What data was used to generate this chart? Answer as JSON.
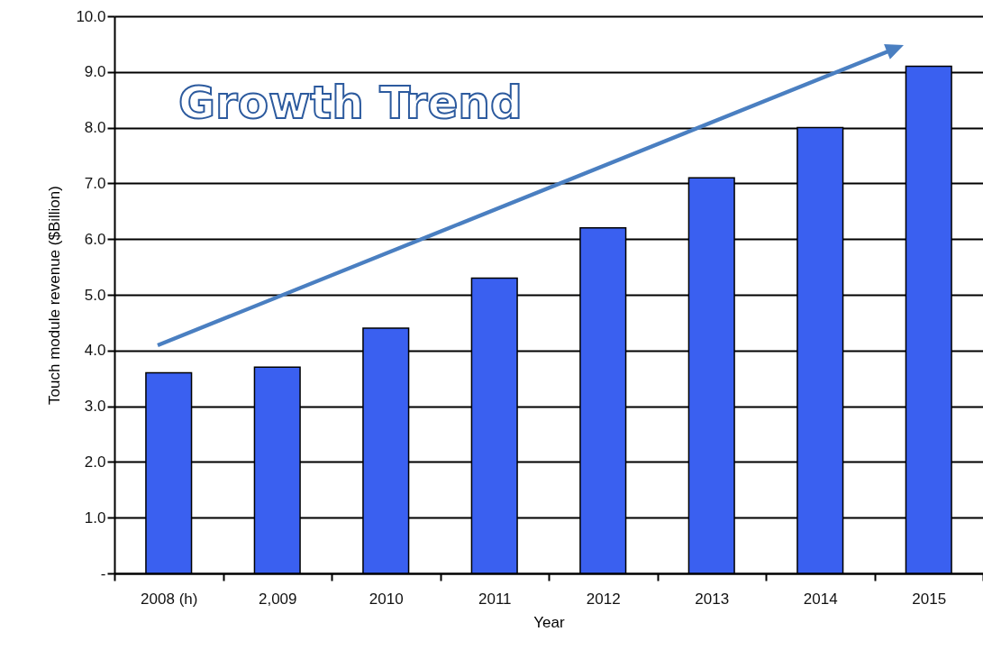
{
  "chart_data": {
    "type": "bar",
    "title": "Growth Trend",
    "xlabel": "Year",
    "ylabel": "Touch module revenue ($Billion)",
    "categories": [
      "2008 (h)",
      "2,009",
      "2010",
      "2011",
      "2012",
      "2013",
      "2014",
      "2015"
    ],
    "values": [
      3.6,
      3.7,
      4.4,
      5.3,
      6.2,
      7.1,
      8.0,
      9.1
    ],
    "color": "#3a60f0",
    "ylim": [
      0,
      10
    ],
    "yticks": [
      {
        "value": 0,
        "label": "-"
      },
      {
        "value": 1,
        "label": "1.0"
      },
      {
        "value": 2,
        "label": "2.0"
      },
      {
        "value": 3,
        "label": "3.0"
      },
      {
        "value": 4,
        "label": "4.0"
      },
      {
        "value": 5,
        "label": "5.0"
      },
      {
        "value": 6,
        "label": "6.0"
      },
      {
        "value": 7,
        "label": "7.0"
      },
      {
        "value": 8,
        "label": "8.0"
      },
      {
        "value": 9,
        "label": "9.0"
      },
      {
        "value": 10,
        "label": "10.0"
      }
    ],
    "grid": "y"
  }
}
